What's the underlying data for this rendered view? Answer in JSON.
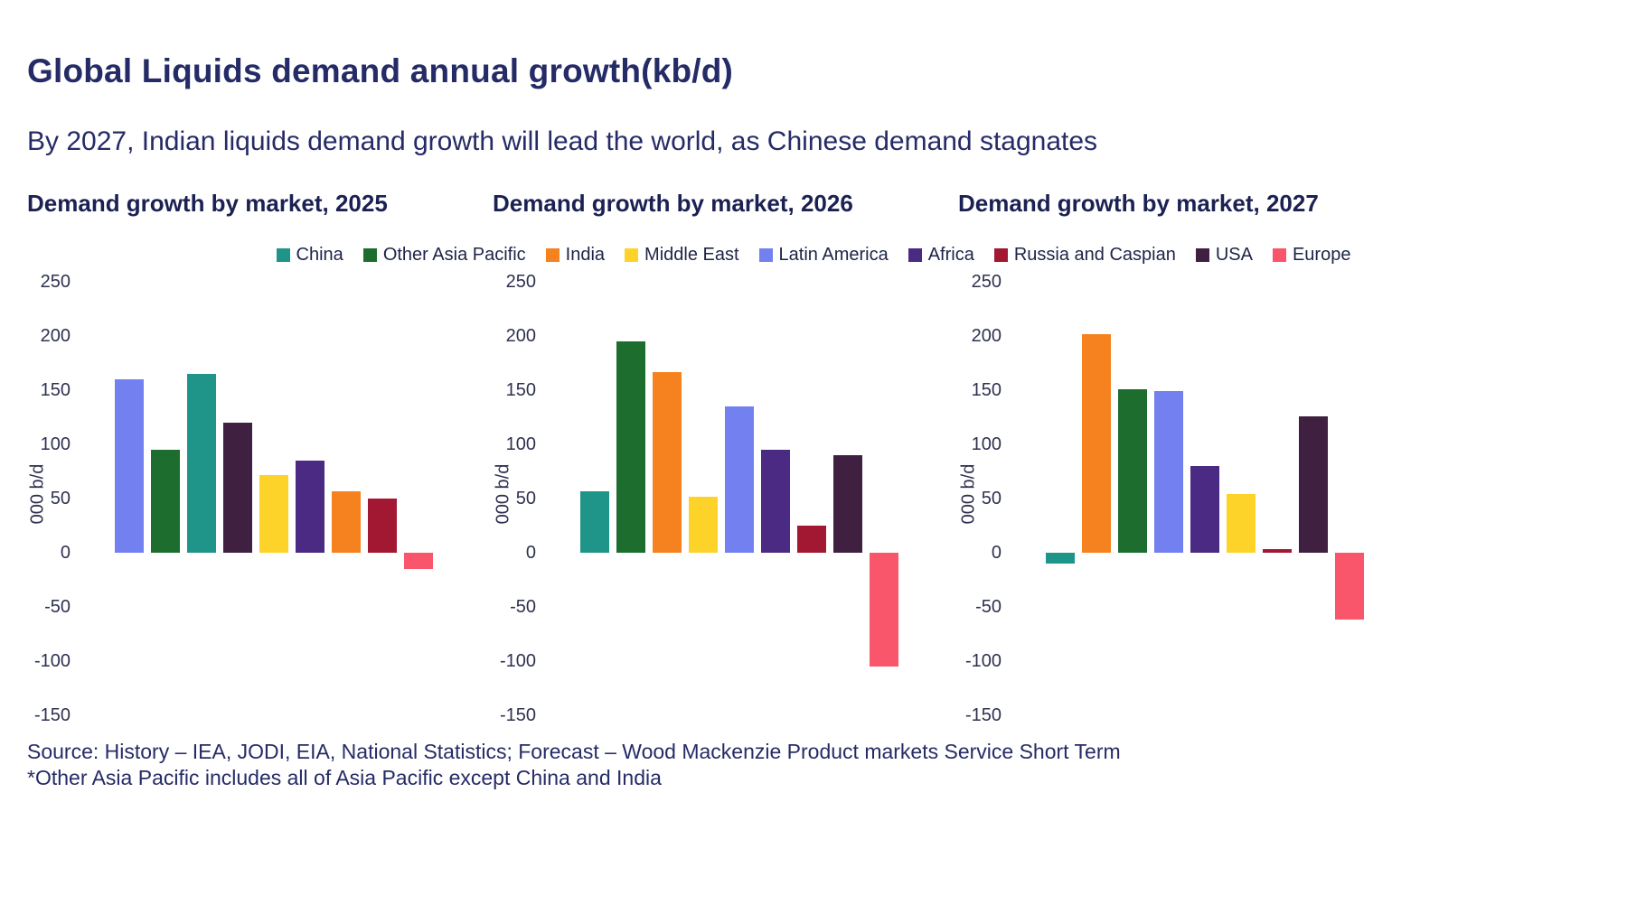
{
  "page": {
    "title": "Global Liquids demand annual growth(kb/d)",
    "subtitle": "By 2027, Indian liquids demand growth will lead the world, as Chinese demand stagnates",
    "source": "Source: History – IEA, JODI, EIA, National Statistics; Forecast – Wood Mackenzie Product markets Service Short Term",
    "footnote": "*Other Asia Pacific includes all of Asia Pacific except China and India"
  },
  "legend": {
    "position": "top-center",
    "items": [
      {
        "label": "China",
        "color": "#1f9488"
      },
      {
        "label": "Other Asia Pacific",
        "color": "#1d6d2f"
      },
      {
        "label": "India",
        "color": "#f5821f"
      },
      {
        "label": "Middle East",
        "color": "#fdd32a"
      },
      {
        "label": "Latin America",
        "color": "#7280f0"
      },
      {
        "label": "Africa",
        "color": "#4a2a82"
      },
      {
        "label": "Russia and Caspian",
        "color": "#a21833"
      },
      {
        "label": "USA",
        "color": "#402040"
      },
      {
        "label": "Europe",
        "color": "#f9566b"
      }
    ]
  },
  "chart_data": [
    {
      "type": "bar",
      "title": "Demand growth by market, 2025",
      "ylabel": "000 b/d",
      "ylim": [
        -150,
        250
      ],
      "yticks": [
        250,
        200,
        150,
        100,
        50,
        0,
        -50,
        -100,
        -150
      ],
      "grid": false,
      "series": [
        {
          "name": "Latin America",
          "value": 160
        },
        {
          "name": "Other Asia Pacific",
          "value": 95
        },
        {
          "name": "China",
          "value": 165
        },
        {
          "name": "USA",
          "value": 120
        },
        {
          "name": "Middle East",
          "value": 72
        },
        {
          "name": "Africa",
          "value": 85
        },
        {
          "name": "India",
          "value": 57
        },
        {
          "name": "Russia and Caspian",
          "value": 50
        },
        {
          "name": "Europe",
          "value": -15
        }
      ]
    },
    {
      "type": "bar",
      "title": "Demand growth by market, 2026",
      "ylabel": "000 b/d",
      "ylim": [
        -150,
        250
      ],
      "yticks": [
        250,
        200,
        150,
        100,
        50,
        0,
        -50,
        -100,
        -150
      ],
      "grid": false,
      "series": [
        {
          "name": "China",
          "value": 57
        },
        {
          "name": "Other Asia Pacific",
          "value": 195
        },
        {
          "name": "India",
          "value": 167
        },
        {
          "name": "Middle East",
          "value": 52
        },
        {
          "name": "Latin America",
          "value": 135
        },
        {
          "name": "Africa",
          "value": 95
        },
        {
          "name": "Russia and Caspian",
          "value": 25
        },
        {
          "name": "USA",
          "value": 90
        },
        {
          "name": "Europe",
          "value": -105
        }
      ]
    },
    {
      "type": "bar",
      "title": "Demand growth by market, 2027",
      "ylabel": "000 b/d",
      "ylim": [
        -150,
        250
      ],
      "yticks": [
        250,
        200,
        150,
        100,
        50,
        0,
        -50,
        -100,
        -150
      ],
      "grid": false,
      "series": [
        {
          "name": "China",
          "value": -10
        },
        {
          "name": "India",
          "value": 202
        },
        {
          "name": "Other Asia Pacific",
          "value": 151
        },
        {
          "name": "Latin America",
          "value": 149
        },
        {
          "name": "Africa",
          "value": 80
        },
        {
          "name": "Middle East",
          "value": 54
        },
        {
          "name": "Russia and Caspian",
          "value": 3
        },
        {
          "name": "USA",
          "value": 126
        },
        {
          "name": "Europe",
          "value": -62
        }
      ]
    }
  ]
}
